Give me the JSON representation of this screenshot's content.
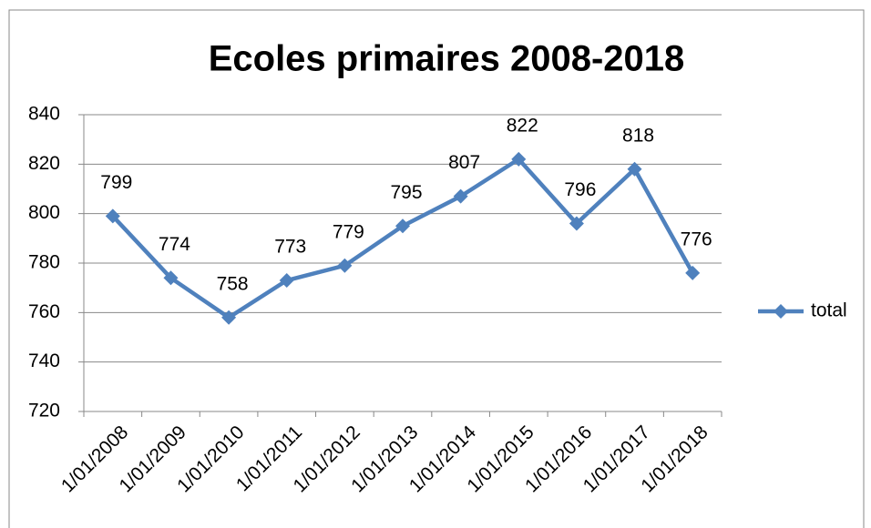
{
  "chart_data": {
    "type": "line",
    "title": "Ecoles primaires 2008-2018",
    "categories": [
      "1/01/2008",
      "1/01/2009",
      "1/01/2010",
      "1/01/2011",
      "1/01/2012",
      "1/01/2013",
      "1/01/2014",
      "1/01/2015",
      "1/01/2016",
      "1/01/2017",
      "1/01/2018"
    ],
    "series": [
      {
        "name": "total",
        "color": "#4f81bd",
        "values": [
          799,
          774,
          758,
          773,
          779,
          795,
          807,
          822,
          796,
          818,
          776
        ]
      }
    ],
    "ylim": [
      720,
      840
    ],
    "yticks": [
      720,
      740,
      760,
      780,
      800,
      820,
      840
    ],
    "grid": true,
    "legend": "right"
  }
}
